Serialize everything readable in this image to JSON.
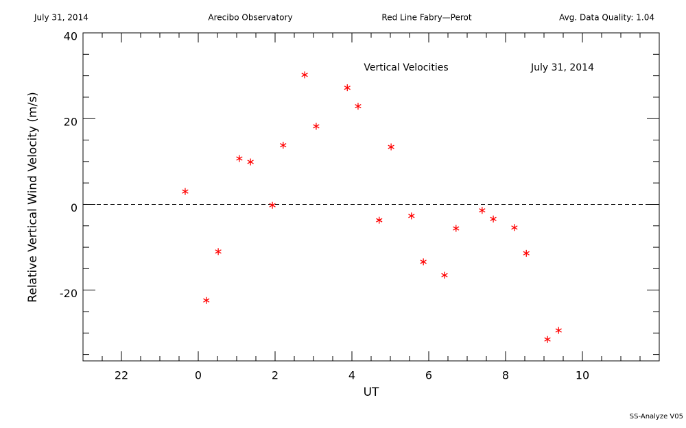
{
  "chart_data": {
    "type": "scatter",
    "header": [
      "July 31, 2014",
      "Arecibo Observatory",
      "Red Line Fabry—Perot",
      "Avg. Data Quality: 1.04"
    ],
    "title": "Vertical Velocities",
    "subtitle": "July 31, 2014",
    "footer": "SS-Analyze V05",
    "xlabel": "UT",
    "ylabel": "Relative Vertical Wind Velocity (m/s)",
    "x": [
      -0.34,
      0.21,
      0.52,
      1.07,
      1.36,
      1.93,
      2.21,
      2.77,
      3.07,
      3.88,
      4.16,
      4.71,
      5.02,
      5.55,
      5.86,
      6.41,
      6.71,
      7.39,
      7.68,
      8.23,
      8.54,
      9.09,
      9.38
    ],
    "values": [
      3.0,
      -22.4,
      -11.0,
      10.7,
      9.9,
      -0.2,
      13.8,
      30.2,
      18.2,
      27.2,
      22.9,
      -3.7,
      13.4,
      -2.7,
      -13.4,
      -16.5,
      -5.6,
      -1.4,
      -3.4,
      -5.4,
      -11.4,
      -31.5,
      -29.4
    ],
    "color": "#ff0000",
    "marker": "asterisk",
    "hline": 0,
    "xlim": [
      -3,
      12
    ],
    "ylim": [
      -36.5,
      40
    ],
    "xticks": [
      {
        "value": -2,
        "label": "22"
      },
      0,
      2,
      4,
      6,
      8,
      10
    ],
    "yticks": [
      -20,
      0,
      20,
      40
    ]
  }
}
